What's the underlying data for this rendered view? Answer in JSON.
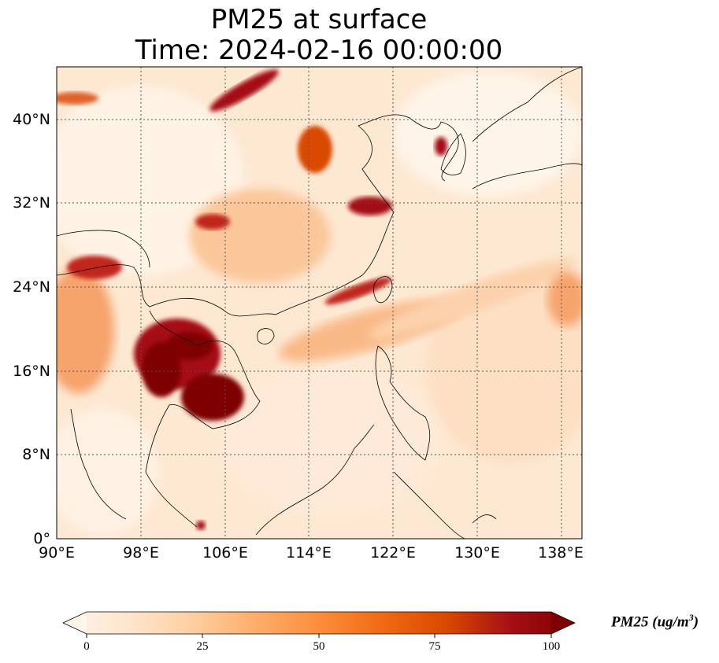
{
  "title_line1": "PM25 at surface",
  "title_line2": "Time: 2024-02-16 00:00:00",
  "map": {
    "type": "heatmap",
    "lon_range": [
      90,
      140
    ],
    "lat_range": [
      0,
      45
    ],
    "x_ticks": [
      "90°E",
      "98°E",
      "106°E",
      "114°E",
      "122°E",
      "130°E",
      "138°E"
    ],
    "y_ticks": [
      "40°N",
      "32°N",
      "24°N",
      "16°N",
      "8°N",
      "0°"
    ],
    "gridlines": "dotted",
    "coastlines": true
  },
  "colorbar": {
    "label_main": "PM25 (ug/m",
    "label_sup": "3",
    "label_close": ")",
    "ticks": [
      "0",
      "25",
      "50",
      "75",
      "100"
    ],
    "range": [
      0,
      100
    ],
    "extend": "both",
    "colormap": [
      "#fff5eb",
      "#fee6ce",
      "#fdd0a2",
      "#fdae6b",
      "#fd8d3c",
      "#f16913",
      "#d94801",
      "#a50f15",
      "#7f0000"
    ]
  }
}
